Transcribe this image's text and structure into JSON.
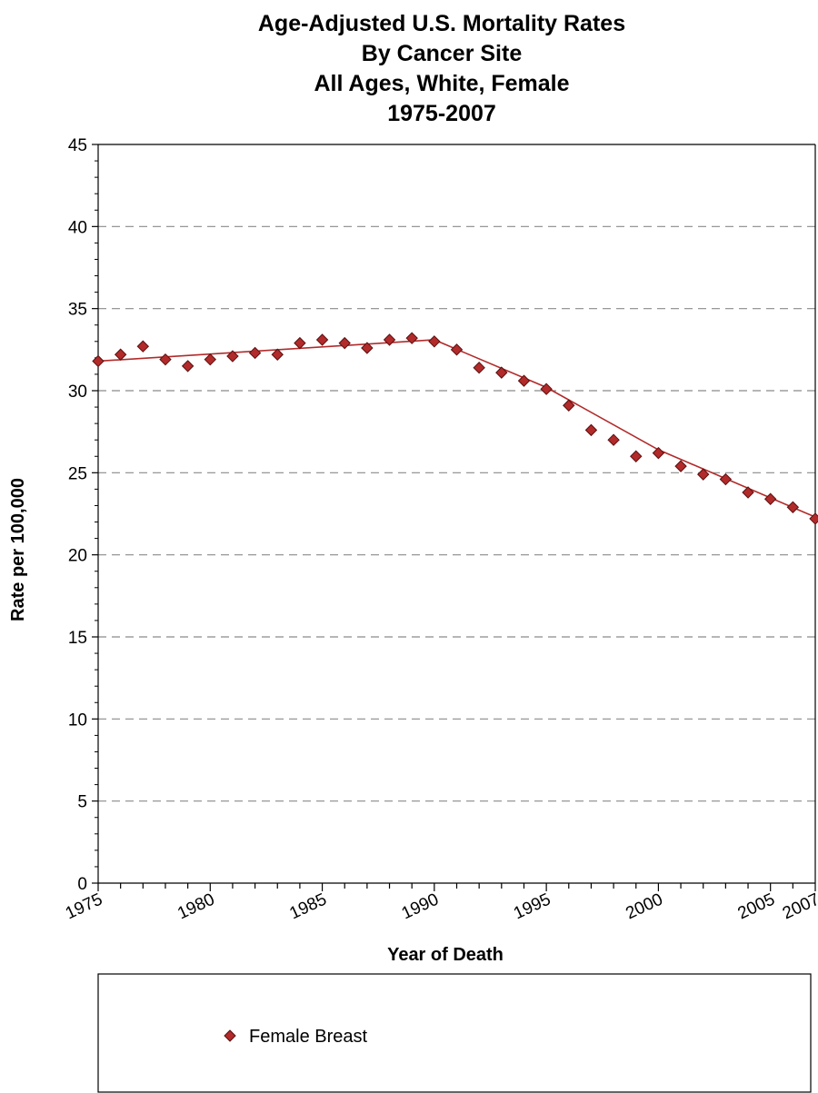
{
  "chart_data": {
    "type": "line",
    "title_lines": [
      "Age-Adjusted U.S. Mortality Rates",
      "By Cancer Site",
      "All Ages, White, Female",
      "1975-2007"
    ],
    "xlabel": "Year of Death",
    "ylabel": "Rate per 100,000",
    "xlim": [
      1975,
      2007
    ],
    "ylim": [
      0,
      45
    ],
    "x_ticks": [
      1975,
      1980,
      1985,
      1990,
      1995,
      2000,
      2005,
      2007
    ],
    "y_ticks": [
      0,
      5,
      10,
      15,
      20,
      25,
      30,
      35,
      40,
      45
    ],
    "grid": "horizontal dashed",
    "legend_position": "bottom",
    "series": [
      {
        "name": "Female Breast",
        "color": "#b22a2a",
        "marker": "diamond",
        "x": [
          1975,
          1976,
          1977,
          1978,
          1979,
          1980,
          1981,
          1982,
          1983,
          1984,
          1985,
          1986,
          1987,
          1988,
          1989,
          1990,
          1991,
          1992,
          1993,
          1994,
          1995,
          1996,
          1997,
          1998,
          1999,
          2000,
          2001,
          2002,
          2003,
          2004,
          2005,
          2006,
          2007
        ],
        "values": [
          31.8,
          32.2,
          32.7,
          31.9,
          31.5,
          31.9,
          32.1,
          32.3,
          32.2,
          32.9,
          33.1,
          32.9,
          32.6,
          33.1,
          33.2,
          33.0,
          32.5,
          31.4,
          31.1,
          30.6,
          30.1,
          29.1,
          27.6,
          27.0,
          26.0,
          26.2,
          25.4,
          24.9,
          24.6,
          23.8,
          23.4,
          22.9,
          22.2
        ],
        "trend_x": [
          1975,
          1990,
          1995,
          2000,
          2007
        ],
        "trend_values": [
          31.8,
          33.1,
          30.2,
          26.4,
          22.3
        ]
      }
    ]
  }
}
